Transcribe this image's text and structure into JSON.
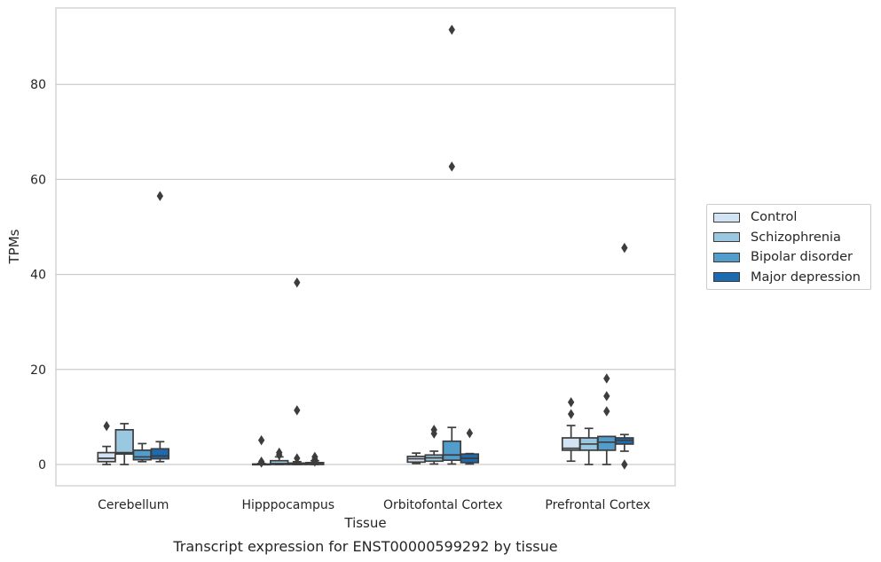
{
  "chart_data": {
    "type": "box",
    "caption": "Transcript expression for ENST00000599292 by tissue",
    "xlabel": "Tissue",
    "ylabel": "TPMs",
    "ylim": [
      -4.5,
      96.5
    ],
    "yticks": [
      0,
      20,
      40,
      60,
      80
    ],
    "grid": "horizontal",
    "legend_position": "right",
    "categories": [
      "Cerebellum",
      "Hipppocampus",
      "Orbitofontal Cortex",
      "Prefrontal Cortex"
    ],
    "series": [
      {
        "name": "Control",
        "color": "#d2e3f3",
        "boxes": [
          {
            "whislo": 0,
            "q1": 0.6,
            "med": 1.3,
            "q3": 2.5,
            "whishi": 3.8,
            "fliers": [
              8.1
            ]
          },
          {
            "whislo": 0,
            "q1": 0,
            "med": 0,
            "q3": 0.1,
            "whishi": 0.2,
            "fliers": [
              0.6,
              0.4,
              5.1
            ]
          },
          {
            "whislo": 0.2,
            "q1": 0.5,
            "med": 1.2,
            "q3": 1.7,
            "whishi": 2.4,
            "fliers": []
          },
          {
            "whislo": 0.7,
            "q1": 3.0,
            "med": 3.4,
            "q3": 5.6,
            "whishi": 8.2,
            "fliers": [
              10.6,
              13.1
            ]
          }
        ]
      },
      {
        "name": "Schizophrenia",
        "color": "#9ac8e0",
        "boxes": [
          {
            "whislo": 0,
            "q1": 2.2,
            "med": 2.5,
            "q3": 7.3,
            "whishi": 8.6,
            "fliers": []
          },
          {
            "whislo": 0,
            "q1": 0,
            "med": 0.2,
            "q3": 0.8,
            "whishi": 1.6,
            "fliers": [
              2.5,
              2.0
            ]
          },
          {
            "whislo": 0.1,
            "q1": 0.7,
            "med": 1.4,
            "q3": 2.0,
            "whishi": 2.8,
            "fliers": [
              6.5,
              7.3
            ]
          },
          {
            "whislo": 0,
            "q1": 3.0,
            "med": 4.3,
            "q3": 5.6,
            "whishi": 7.6,
            "fliers": []
          }
        ]
      },
      {
        "name": "Bipolar disorder",
        "color": "#529dcc",
        "boxes": [
          {
            "whislo": 0.6,
            "q1": 1.0,
            "med": 1.6,
            "q3": 3.0,
            "whishi": 4.4,
            "fliers": []
          },
          {
            "whislo": 0,
            "q1": 0,
            "med": 0.1,
            "q3": 0.3,
            "whishi": 0.6,
            "fliers": [
              11.4,
              1.3,
              38.3
            ]
          },
          {
            "whislo": 0.1,
            "q1": 0.9,
            "med": 2.0,
            "q3": 4.9,
            "whishi": 7.8,
            "fliers": [
              62.7,
              91.5
            ]
          },
          {
            "whislo": 0,
            "q1": 3.0,
            "med": 4.7,
            "q3": 5.9,
            "whishi": 5.9,
            "fliers": [
              11.2,
              14.4,
              18.1
            ]
          }
        ]
      },
      {
        "name": "Major depression",
        "color": "#1c6aaf",
        "boxes": [
          {
            "whislo": 0.6,
            "q1": 1.2,
            "med": 1.8,
            "q3": 3.3,
            "whishi": 4.8,
            "fliers": [
              56.5
            ]
          },
          {
            "whislo": 0,
            "q1": 0,
            "med": 0.1,
            "q3": 0.4,
            "whishi": 0.8,
            "fliers": [
              1.6,
              1.1,
              0.6
            ]
          },
          {
            "whislo": 0.1,
            "q1": 0.4,
            "med": 1.3,
            "q3": 2.2,
            "whishi": 2.3,
            "fliers": [
              6.6
            ]
          },
          {
            "whislo": 2.8,
            "q1": 4.3,
            "med": 5.1,
            "q3": 5.6,
            "whishi": 6.3,
            "fliers": [
              45.6,
              0
            ]
          }
        ]
      }
    ]
  }
}
